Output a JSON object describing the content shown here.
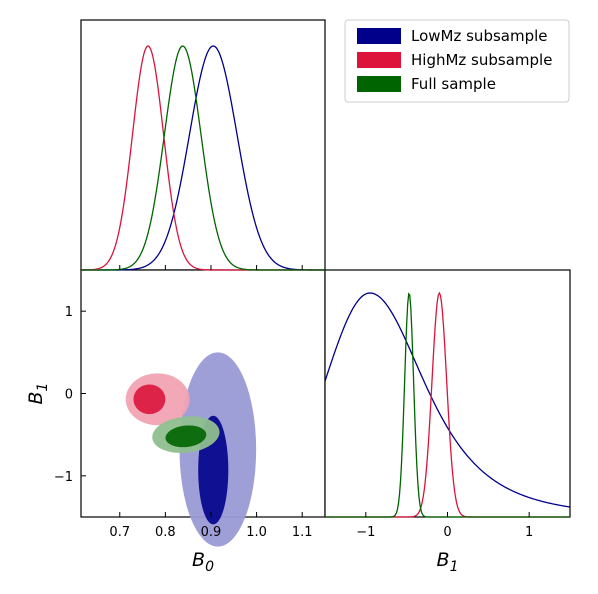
{
  "chart_data": {
    "type": "triangle-corner-plot",
    "parameters": [
      "B0",
      "B1"
    ],
    "axis_labels": {
      "B0": {
        "main": "B",
        "sub": "0"
      },
      "B1": {
        "main": "B",
        "sub": "1"
      }
    },
    "ranges": {
      "B0": [
        0.615,
        1.15
      ],
      "B1": [
        -1.5,
        1.5
      ]
    },
    "ticks": {
      "B0": [
        0.7,
        0.8,
        0.9,
        1.0,
        1.1
      ],
      "B0_labels": [
        "0.7",
        "0.8",
        "0.9",
        "1.0",
        "1.1"
      ],
      "B1": [
        -1,
        0,
        1
      ],
      "B1_labels": [
        "−1",
        "0",
        "1"
      ]
    },
    "legend": {
      "placement": "top-right"
    },
    "series": [
      {
        "name": "LowMz subsample",
        "color": "#00008b",
        "fill_outer": "#9a9ad6",
        "fill_inner": "#00008b",
        "B0_marginal": {
          "type": "gaussian",
          "mean": 0.905,
          "sd": 0.052
        },
        "B1_marginal": {
          "type": "skewed",
          "peak": -0.95,
          "sd_left": 0.55,
          "sd_right": 0.72,
          "tail": 2.8
        },
        "contour_68": {
          "cx": 0.905,
          "cy": -0.93,
          "rx": 0.033,
          "ry": 0.66
        },
        "contour_95": {
          "cx": 0.915,
          "cy": -0.68,
          "rx": 0.084,
          "ry": 1.18
        }
      },
      {
        "name": "HighMz subsample",
        "color": "#dc143c",
        "fill_outer": "#f2a3b4",
        "fill_inner": "#dc143c",
        "B0_marginal": {
          "type": "gaussian",
          "mean": 0.762,
          "sd": 0.034
        },
        "B1_marginal": {
          "type": "gaussian",
          "mean": -0.1,
          "sd": 0.09
        },
        "contour_68": {
          "cx": 0.765,
          "cy": -0.07,
          "rx": 0.035,
          "ry": 0.18
        },
        "contour_95": {
          "cx": 0.783,
          "cy": -0.07,
          "rx": 0.07,
          "ry": 0.315
        }
      },
      {
        "name": "Full sample",
        "color": "#006400",
        "fill_outer": "#8fbf8f",
        "fill_inner": "#006400",
        "B0_marginal": {
          "type": "gaussian",
          "mean": 0.838,
          "sd": 0.04
        },
        "B1_marginal": {
          "type": "gaussian",
          "mean": -0.47,
          "sd": 0.055
        },
        "contour_68": {
          "cx": 0.845,
          "cy": -0.52,
          "rx": 0.045,
          "ry": 0.13,
          "angle_deg": -6
        },
        "contour_95": {
          "cx": 0.845,
          "cy": -0.5,
          "rx": 0.074,
          "ry": 0.22,
          "angle_deg": -6
        }
      }
    ]
  }
}
